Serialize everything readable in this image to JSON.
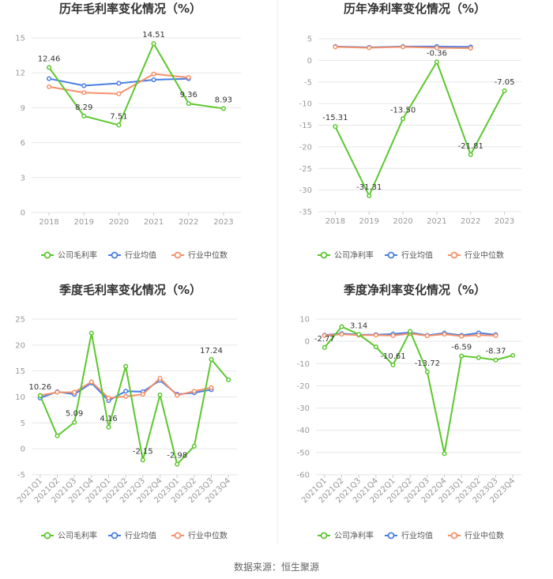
{
  "source": "数据来源：恒生聚源",
  "colors": {
    "company": "#5cc72e",
    "average": "#4a7ee6",
    "median": "#f4916a",
    "grid": "#e6e6e6",
    "divider": "#eeeeee"
  },
  "chart_data": [
    {
      "type": "line",
      "title": "历年毛利率变化情况（%）",
      "categories": [
        "2018",
        "2019",
        "2020",
        "2021",
        "2022",
        "2023"
      ],
      "ylim": [
        0,
        15
      ],
      "yticks": [
        0,
        3,
        6,
        9,
        12,
        15
      ],
      "grid": true,
      "legend": "bottom",
      "series": [
        {
          "name": "公司毛利率",
          "values": [
            12.46,
            8.29,
            7.51,
            14.51,
            9.36,
            8.93
          ],
          "labels": [
            "12.46",
            "8.29",
            "7.51",
            "14.51",
            "9.36",
            "8.93"
          ]
        },
        {
          "name": "行业均值",
          "values": [
            11.5,
            10.9,
            11.1,
            11.4,
            11.5,
            null
          ]
        },
        {
          "name": "行业中位数",
          "values": [
            10.8,
            10.3,
            10.2,
            11.9,
            11.6,
            null
          ]
        }
      ]
    },
    {
      "type": "line",
      "title": "历年净利率变化情况（%）",
      "categories": [
        "2018",
        "2019",
        "2020",
        "2021",
        "2022",
        "2023"
      ],
      "ylim": [
        -35,
        5
      ],
      "yticks": [
        -35,
        -30,
        -25,
        -20,
        -15,
        -10,
        -5,
        0,
        5
      ],
      "grid": true,
      "legend": "bottom",
      "series": [
        {
          "name": "公司净利率",
          "values": [
            -15.31,
            -31.31,
            -13.5,
            -0.36,
            -21.81,
            -7.05
          ],
          "labels": [
            "-15.31",
            "-31.31",
            "-13.50",
            "-0.36",
            "-21.81",
            "-7.05"
          ]
        },
        {
          "name": "行业均值",
          "values": [
            3.2,
            3.0,
            3.2,
            3.2,
            3.1,
            null
          ]
        },
        {
          "name": "行业中位数",
          "values": [
            3.1,
            2.9,
            3.1,
            2.9,
            2.8,
            null
          ]
        }
      ]
    },
    {
      "type": "line",
      "title": "季度毛利率变化情况（%）",
      "categories": [
        "2021Q1",
        "2021Q2",
        "2021Q3",
        "2021Q4",
        "2022Q1",
        "2022Q2",
        "2022Q3",
        "2022Q4",
        "2023Q1",
        "2023Q2",
        "2023Q3",
        "2023Q4"
      ],
      "ylim": [
        -5,
        25
      ],
      "yticks": [
        -5,
        0,
        5,
        10,
        15,
        20,
        25
      ],
      "grid": true,
      "legend": "bottom",
      "series": [
        {
          "name": "公司毛利率",
          "values": [
            10.26,
            2.5,
            5.09,
            22.3,
            4.16,
            15.9,
            -2.15,
            10.4,
            -2.98,
            0.5,
            17.24,
            13.3
          ],
          "labels": [
            "10.26",
            "",
            "5.09",
            "",
            "4.16",
            "",
            "-2.15",
            "",
            "-2.98",
            "",
            "17.24",
            ""
          ]
        },
        {
          "name": "行业均值",
          "values": [
            9.8,
            11.0,
            10.5,
            12.7,
            9.3,
            11.1,
            11.0,
            13.2,
            10.5,
            10.8,
            11.4,
            null
          ]
        },
        {
          "name": "行业中位数",
          "values": [
            10.3,
            10.9,
            10.9,
            12.9,
            9.8,
            10.1,
            10.5,
            13.6,
            10.3,
            11.1,
            11.8,
            null
          ]
        }
      ]
    },
    {
      "type": "line",
      "title": "季度净利率变化情况（%）",
      "categories": [
        "2021Q1",
        "2021Q2",
        "2021Q3",
        "2021Q4",
        "2022Q1",
        "2022Q2",
        "2022Q3",
        "2022Q4",
        "2023Q1",
        "2023Q2",
        "2023Q3",
        "2023Q4"
      ],
      "ylim": [
        -60,
        10
      ],
      "yticks": [
        -60,
        -50,
        -40,
        -30,
        -20,
        -10,
        0,
        10
      ],
      "grid": true,
      "legend": "bottom",
      "series": [
        {
          "name": "公司净利率",
          "values": [
            -2.77,
            6.6,
            3.14,
            -2.5,
            -10.61,
            4.5,
            -13.72,
            -50.5,
            -6.59,
            -7.3,
            -8.37,
            -6.3
          ],
          "labels": [
            "-2.77",
            "",
            "3.14",
            "",
            "-10.61",
            "",
            "-13.72",
            "",
            "-6.59",
            "",
            "-8.37",
            ""
          ]
        },
        {
          "name": "行业均值",
          "values": [
            2.8,
            3.5,
            3.0,
            3.0,
            3.3,
            4.0,
            2.7,
            3.7,
            2.7,
            3.8,
            3.0,
            null
          ]
        },
        {
          "name": "行业中位数",
          "values": [
            2.6,
            3.2,
            2.8,
            2.8,
            2.6,
            3.5,
            2.5,
            3.2,
            2.3,
            2.8,
            2.6,
            null
          ]
        }
      ]
    }
  ]
}
